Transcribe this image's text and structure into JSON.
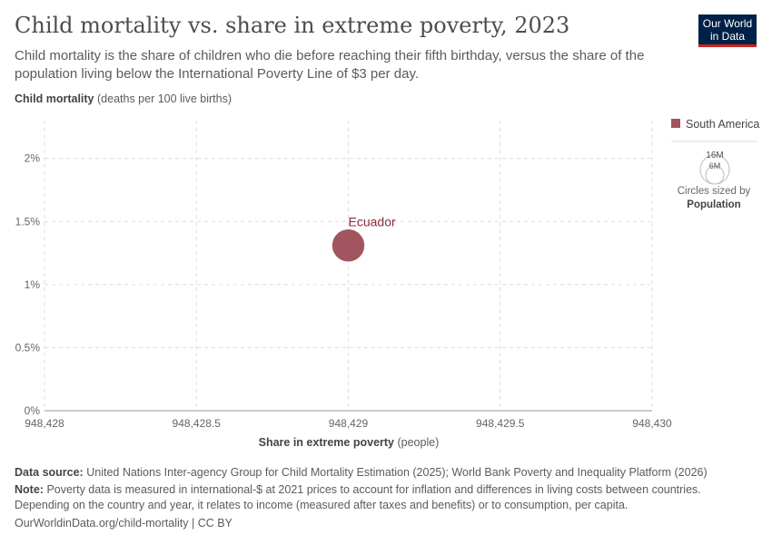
{
  "header": {
    "title": "Child mortality vs. share in extreme poverty, 2023",
    "subtitle": "Child mortality is the share of children who die before reaching their fifth birthday, versus the share of the population living below the International Poverty Line of $3 per day.",
    "logo": "Our World in Data"
  },
  "chart_data": {
    "type": "scatter",
    "title": "Child mortality vs. share in extreme poverty, 2023",
    "xlabel": "Share in extreme poverty",
    "xlabel_unit": "(people)",
    "ylabel": "Child mortality",
    "ylabel_unit": "(deaths per 100 live births)",
    "xlim": [
      948428,
      948430
    ],
    "ylim": [
      0,
      2.3
    ],
    "xticks": [
      948428,
      948428.5,
      948429,
      948429.5,
      948430
    ],
    "xtick_labels": [
      "948,428",
      "948,428.5",
      "948,429",
      "948,429.5",
      "948,430"
    ],
    "yticks": [
      0,
      0.5,
      1,
      1.5,
      2
    ],
    "ytick_labels": [
      "0%",
      "0.5%",
      "1%",
      "1.5%",
      "2%"
    ],
    "grid": true,
    "points": [
      {
        "label": "Ecuador",
        "x": 948429,
        "y": 1.31,
        "group": "South America",
        "population_m": 18
      }
    ],
    "legend": {
      "placement": "right",
      "entries": [
        {
          "name": "South America",
          "color": "#a2555f"
        }
      ],
      "size_legend": {
        "values": [
          "16M",
          "6M"
        ],
        "note": "Circles sized by",
        "variable": "Population"
      }
    },
    "colors": {
      "point": "#a2555f",
      "label": "#8a2e3a"
    }
  },
  "footer": {
    "source_label": "Data source:",
    "source": "United Nations Inter-agency Group for Child Mortality Estimation (2025); World Bank Poverty and Inequality Platform (2026)",
    "note_label": "Note:",
    "note": "Poverty data is measured in international-$ at 2021 prices to account for inflation and differences in living costs between countries. Depending on the country and year, it relates to income (measured after taxes and benefits) or to consumption, per capita.",
    "url": "OurWorldinData.org/child-mortality | CC BY"
  }
}
